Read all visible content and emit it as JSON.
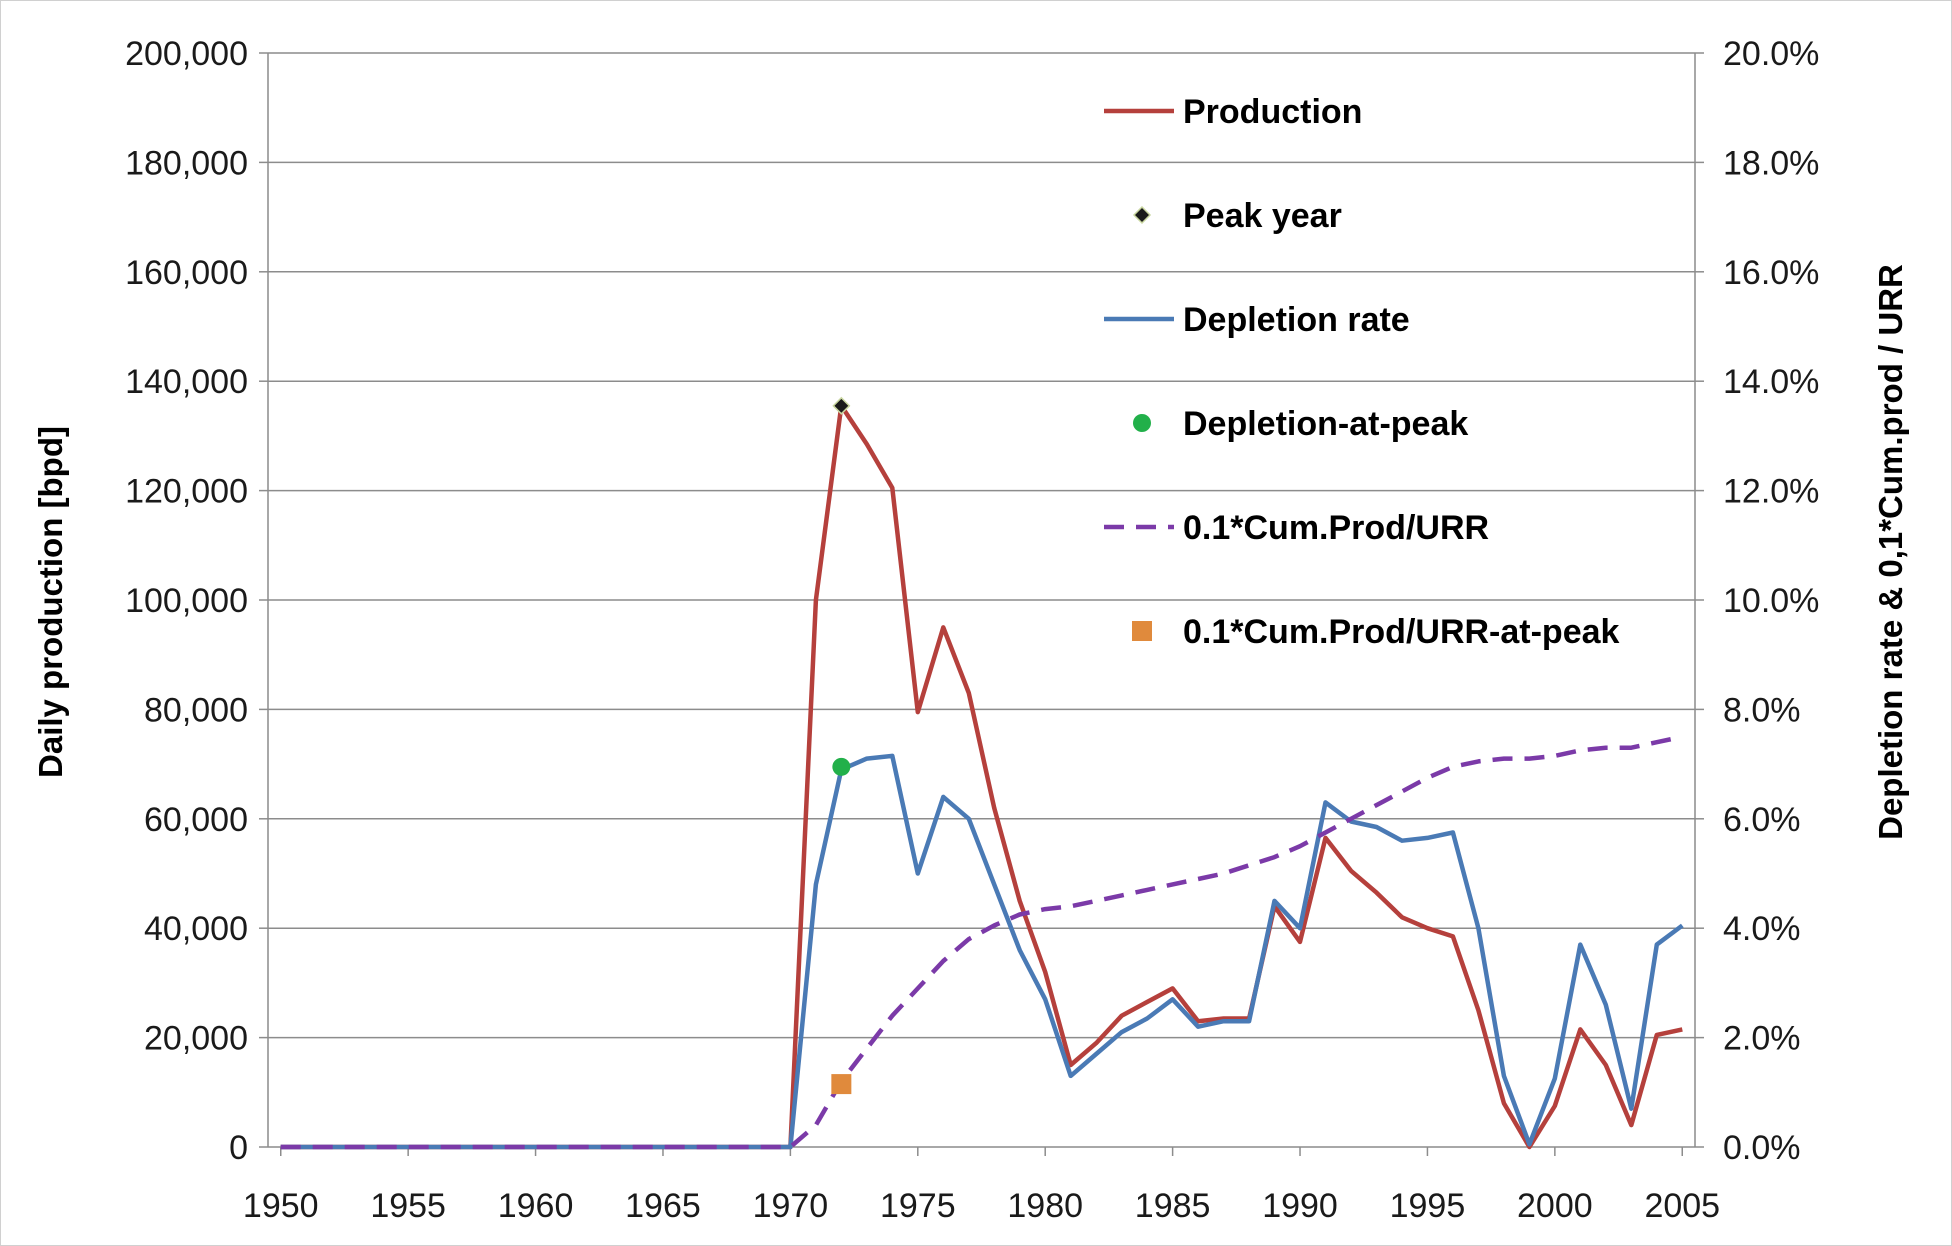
{
  "chart_data": {
    "type": "line",
    "title": "",
    "x": [
      1950,
      1951,
      1952,
      1953,
      1954,
      1955,
      1956,
      1957,
      1958,
      1959,
      1960,
      1961,
      1962,
      1963,
      1964,
      1965,
      1966,
      1967,
      1968,
      1969,
      1970,
      1971,
      1972,
      1973,
      1974,
      1975,
      1976,
      1977,
      1978,
      1979,
      1980,
      1981,
      1982,
      1983,
      1984,
      1985,
      1986,
      1987,
      1988,
      1989,
      1990,
      1991,
      1992,
      1993,
      1994,
      1995,
      1996,
      1997,
      1998,
      1999,
      2000,
      2001,
      2002,
      2003,
      2004,
      2005
    ],
    "xticks": [
      "1950",
      "1955",
      "1960",
      "1965",
      "1970",
      "1975",
      "1980",
      "1985",
      "1990",
      "1995",
      "2000",
      "2005"
    ],
    "xlim": [
      1949.5,
      2005.5
    ],
    "ylabel_left": "Daily production  [bpd]",
    "ylabel_right": "Depletion rate & 0,1*Cum.prod / URR",
    "ylim_left": [
      0,
      200000
    ],
    "ylim_right": [
      0,
      0.2
    ],
    "yticks_left": [
      "0",
      "20,000",
      "40,000",
      "60,000",
      "80,000",
      "100,000",
      "120,000",
      "140,000",
      "160,000",
      "180,000",
      "200,000"
    ],
    "yticks_right": [
      "0.0%",
      "2.0%",
      "4.0%",
      "6.0%",
      "8.0%",
      "10.0%",
      "12.0%",
      "14.0%",
      "16.0%",
      "18.0%",
      "20.0%"
    ],
    "grid": "horizontal",
    "legend_position": "top-right",
    "series": [
      {
        "name": "Production",
        "axis": "left",
        "style": "line",
        "color": "#b5403c",
        "values": [
          0,
          0,
          0,
          0,
          0,
          0,
          0,
          0,
          0,
          0,
          0,
          0,
          0,
          0,
          0,
          0,
          0,
          0,
          0,
          0,
          0,
          100000,
          135500,
          128500,
          120500,
          79500,
          95000,
          83000,
          62000,
          45000,
          32000,
          15000,
          19000,
          24000,
          26500,
          29000,
          23000,
          23500,
          23500,
          44000,
          37500,
          56500,
          50500,
          46500,
          42000,
          40000,
          38500,
          25000,
          8000,
          0,
          7500,
          21500,
          15000,
          4000,
          20500,
          21500
        ]
      },
      {
        "name": "Peak year",
        "axis": "left",
        "style": "diamond",
        "color": "#1a1a1a",
        "points": [
          {
            "x": 1972,
            "y": 135500
          }
        ]
      },
      {
        "name": "Depletion rate",
        "axis": "right",
        "style": "line",
        "color": "#4a7ab5",
        "values": [
          0,
          0,
          0,
          0,
          0,
          0,
          0,
          0,
          0,
          0,
          0,
          0,
          0,
          0,
          0,
          0,
          0,
          0,
          0,
          0,
          0,
          0.048,
          0.069,
          0.071,
          0.0715,
          0.05,
          0.064,
          0.06,
          0.048,
          0.036,
          0.027,
          0.013,
          0.017,
          0.021,
          0.0235,
          0.027,
          0.022,
          0.023,
          0.023,
          0.045,
          0.04,
          0.063,
          0.0595,
          0.0585,
          0.056,
          0.0565,
          0.0575,
          0.04,
          0.013,
          0.0005,
          0.0125,
          0.037,
          0.026,
          0.007,
          0.037,
          0.0405
        ]
      },
      {
        "name": "Depletion-at-peak",
        "axis": "right",
        "style": "circle",
        "color": "#22b04a",
        "points": [
          {
            "x": 1972,
            "y": 0.0695
          }
        ]
      },
      {
        "name": "0.1*Cum.Prod/URR",
        "axis": "right",
        "style": "dashed",
        "color": "#7b3aa8",
        "values": [
          0,
          0,
          0,
          0,
          0,
          0,
          0,
          0,
          0,
          0,
          0,
          0,
          0,
          0,
          0,
          0,
          0,
          0,
          0,
          0,
          0,
          0.004,
          0.012,
          0.018,
          0.024,
          0.029,
          0.034,
          0.038,
          0.0405,
          0.0425,
          0.0435,
          0.044,
          0.045,
          0.046,
          0.047,
          0.048,
          0.049,
          0.05,
          0.0515,
          0.053,
          0.055,
          0.0575,
          0.06,
          0.0625,
          0.065,
          0.0675,
          0.0695,
          0.0705,
          0.071,
          0.071,
          0.0715,
          0.0725,
          0.073,
          0.073,
          0.074,
          0.075
        ]
      },
      {
        "name": "0.1*Cum.Prod/URR-at-peak",
        "axis": "right",
        "style": "square",
        "color": "#e08a3c",
        "points": [
          {
            "x": 1972,
            "y": 0.0115
          }
        ]
      }
    ]
  }
}
